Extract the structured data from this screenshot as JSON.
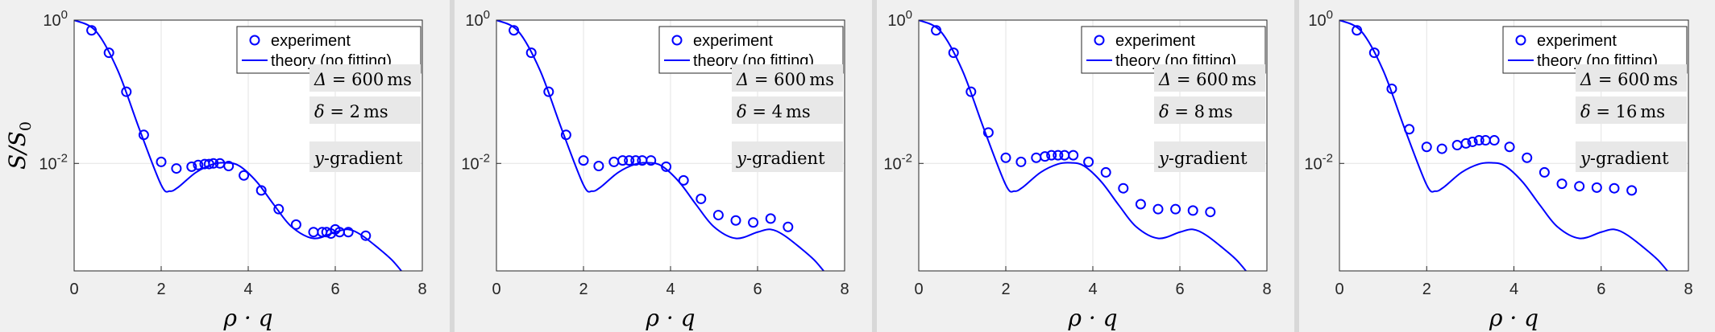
{
  "panels": [
    {
      "annotations": {
        "Delta": "600",
        "Delta_unit": "ms",
        "delta": "2",
        "delta_unit": "ms",
        "gradient": "y",
        "gradient_suffix": "-gradient"
      }
    },
    {
      "annotations": {
        "Delta": "600",
        "Delta_unit": "ms",
        "delta": "4",
        "delta_unit": "ms",
        "gradient": "y",
        "gradient_suffix": "-gradient"
      }
    },
    {
      "annotations": {
        "Delta": "600",
        "Delta_unit": "ms",
        "delta": "8",
        "delta_unit": "ms",
        "gradient": "y",
        "gradient_suffix": "-gradient"
      }
    },
    {
      "annotations": {
        "Delta": "600",
        "Delta_unit": "ms",
        "delta": "16",
        "delta_unit": "ms",
        "gradient": "y",
        "gradient_suffix": "-gradient"
      }
    }
  ],
  "colors": {
    "series": "#0000ff",
    "panel_bg": "#f0f0f0",
    "plot_bg": "#ffffff",
    "grid": "#e3e3e3",
    "annotation_bg": "#e8e8e8"
  },
  "chart_data": [
    {
      "type": "scatter+line",
      "xlabel": "ρ · q",
      "ylabel": "S/S0",
      "ylabel_main": "S",
      "ylabel_sub": "0",
      "xlim": [
        0,
        8
      ],
      "ylim_log10": [
        -3.5,
        0
      ],
      "yscale": "log",
      "xticks": [
        "0",
        "2",
        "4",
        "6",
        "8"
      ],
      "yticks": [
        {
          "base": "10",
          "exp": "0",
          "value": 1
        },
        {
          "base": "10",
          "exp": "-2",
          "value": 0.01
        }
      ],
      "legend": {
        "position": "top-right",
        "entries": [
          "experiment",
          "theory (no fitting)"
        ]
      },
      "series": [
        {
          "name": "experiment",
          "kind": "markers",
          "x": [
            0.4,
            0.8,
            1.2,
            1.6,
            2.0,
            2.35,
            2.7,
            2.85,
            3.0,
            3.1,
            3.2,
            3.35,
            3.55,
            3.9,
            4.3,
            4.7,
            5.1,
            5.5,
            5.7,
            5.8,
            5.9,
            6.0,
            6.1,
            6.3,
            6.7
          ],
          "y": [
            0.72,
            0.35,
            0.1,
            0.025,
            0.0105,
            0.0085,
            0.009,
            0.0095,
            0.0098,
            0.0098,
            0.01,
            0.01,
            0.0092,
            0.0068,
            0.0042,
            0.0023,
            0.0014,
            0.0011,
            0.0011,
            0.0011,
            0.00105,
            0.0012,
            0.0011,
            0.0011,
            0.00098
          ]
        },
        {
          "name": "theory (no fitting)",
          "kind": "line",
          "x": [
            0,
            0.5,
            1.0,
            1.5,
            2.0,
            2.2,
            2.4,
            2.8,
            3.2,
            3.5,
            3.8,
            4.2,
            4.6,
            5.0,
            5.5,
            6.0,
            6.3,
            6.6,
            7.0,
            7.3,
            7.55
          ],
          "y": [
            1.0,
            0.7,
            0.2,
            0.03,
            0.005,
            0.0041,
            0.0047,
            0.0075,
            0.0098,
            0.0102,
            0.0092,
            0.0055,
            0.0026,
            0.0013,
            0.0009,
            0.0011,
            0.0012,
            0.001,
            0.00065,
            0.00045,
            0.0003
          ]
        }
      ]
    },
    {
      "type": "scatter+line",
      "xlabel": "ρ · q",
      "ylabel": "",
      "xlim": [
        0,
        8
      ],
      "ylim_log10": [
        -3.5,
        0
      ],
      "yscale": "log",
      "xticks": [
        "0",
        "2",
        "4",
        "6",
        "8"
      ],
      "yticks": [
        {
          "base": "10",
          "exp": "0",
          "value": 1
        },
        {
          "base": "10",
          "exp": "-2",
          "value": 0.01
        }
      ],
      "legend": {
        "position": "top-right",
        "entries": [
          "experiment",
          "theory (no fitting)"
        ]
      },
      "series": [
        {
          "name": "experiment",
          "kind": "markers",
          "x": [
            0.4,
            0.8,
            1.2,
            1.6,
            2.0,
            2.35,
            2.7,
            2.9,
            3.05,
            3.2,
            3.35,
            3.55,
            3.9,
            4.3,
            4.7,
            5.1,
            5.5,
            5.9,
            6.3,
            6.7
          ],
          "y": [
            0.72,
            0.35,
            0.1,
            0.025,
            0.011,
            0.0092,
            0.0105,
            0.011,
            0.011,
            0.011,
            0.011,
            0.011,
            0.009,
            0.0058,
            0.0032,
            0.0019,
            0.0016,
            0.0015,
            0.0017,
            0.0013
          ]
        },
        {
          "name": "theory (no fitting)",
          "kind": "line",
          "x": [
            0,
            0.5,
            1.0,
            1.5,
            2.0,
            2.2,
            2.4,
            2.8,
            3.2,
            3.5,
            3.8,
            4.2,
            4.6,
            5.0,
            5.5,
            6.0,
            6.3,
            6.6,
            7.0,
            7.3,
            7.55
          ],
          "y": [
            1.0,
            0.7,
            0.2,
            0.03,
            0.005,
            0.0041,
            0.0047,
            0.0075,
            0.0098,
            0.0102,
            0.0092,
            0.0055,
            0.0026,
            0.0013,
            0.0009,
            0.0011,
            0.0012,
            0.001,
            0.00065,
            0.00045,
            0.0003
          ]
        }
      ]
    },
    {
      "type": "scatter+line",
      "xlabel": "ρ · q",
      "ylabel": "",
      "xlim": [
        0,
        8
      ],
      "ylim_log10": [
        -3.5,
        0
      ],
      "yscale": "log",
      "xticks": [
        "0",
        "2",
        "4",
        "6",
        "8"
      ],
      "yticks": [
        {
          "base": "10",
          "exp": "0",
          "value": 1
        },
        {
          "base": "10",
          "exp": "-2",
          "value": 0.01
        }
      ],
      "legend": {
        "position": "top-right",
        "entries": [
          "experiment",
          "theory (no fitting)"
        ]
      },
      "series": [
        {
          "name": "experiment",
          "kind": "markers",
          "x": [
            0.4,
            0.8,
            1.2,
            1.6,
            2.0,
            2.35,
            2.7,
            2.9,
            3.05,
            3.2,
            3.35,
            3.55,
            3.9,
            4.3,
            4.7,
            5.1,
            5.5,
            5.9,
            6.3,
            6.7
          ],
          "y": [
            0.72,
            0.35,
            0.1,
            0.027,
            0.012,
            0.0105,
            0.012,
            0.0125,
            0.013,
            0.013,
            0.013,
            0.013,
            0.0105,
            0.0075,
            0.0045,
            0.0027,
            0.0023,
            0.0023,
            0.0022,
            0.0021
          ]
        },
        {
          "name": "theory (no fitting)",
          "kind": "line",
          "x": [
            0,
            0.5,
            1.0,
            1.5,
            2.0,
            2.2,
            2.4,
            2.8,
            3.2,
            3.5,
            3.8,
            4.2,
            4.6,
            5.0,
            5.5,
            6.0,
            6.3,
            6.6,
            7.0,
            7.3,
            7.55
          ],
          "y": [
            1.0,
            0.7,
            0.2,
            0.03,
            0.005,
            0.0041,
            0.0047,
            0.0075,
            0.0098,
            0.0102,
            0.0092,
            0.0055,
            0.0026,
            0.0013,
            0.0009,
            0.0011,
            0.0012,
            0.001,
            0.00065,
            0.00045,
            0.0003
          ]
        }
      ]
    },
    {
      "type": "scatter+line",
      "xlabel": "ρ · q",
      "ylabel": "",
      "xlim": [
        0,
        8
      ],
      "ylim_log10": [
        -3.5,
        0
      ],
      "yscale": "log",
      "xticks": [
        "0",
        "2",
        "4",
        "6",
        "8"
      ],
      "yticks": [
        {
          "base": "10",
          "exp": "0",
          "value": 1
        },
        {
          "base": "10",
          "exp": "-2",
          "value": 0.01
        }
      ],
      "legend": {
        "position": "top-right",
        "entries": [
          "experiment",
          "theory (no fitting)"
        ]
      },
      "series": [
        {
          "name": "experiment",
          "kind": "markers",
          "x": [
            0.4,
            0.8,
            1.2,
            1.6,
            2.0,
            2.35,
            2.7,
            2.9,
            3.05,
            3.2,
            3.35,
            3.55,
            3.9,
            4.3,
            4.7,
            5.1,
            5.5,
            5.9,
            6.3,
            6.7
          ],
          "y": [
            0.72,
            0.35,
            0.11,
            0.03,
            0.017,
            0.016,
            0.018,
            0.019,
            0.02,
            0.021,
            0.021,
            0.021,
            0.017,
            0.012,
            0.0075,
            0.0052,
            0.0048,
            0.0046,
            0.0045,
            0.0042
          ]
        },
        {
          "name": "theory (no fitting)",
          "kind": "line",
          "x": [
            0,
            0.5,
            1.0,
            1.5,
            2.0,
            2.2,
            2.4,
            2.8,
            3.2,
            3.5,
            3.8,
            4.2,
            4.6,
            5.0,
            5.5,
            6.0,
            6.3,
            6.6,
            7.0,
            7.3,
            7.55
          ],
          "y": [
            1.0,
            0.7,
            0.2,
            0.03,
            0.005,
            0.0041,
            0.0047,
            0.0075,
            0.0098,
            0.0102,
            0.0092,
            0.0055,
            0.0026,
            0.0013,
            0.0009,
            0.0011,
            0.0012,
            0.001,
            0.00065,
            0.00045,
            0.0003
          ]
        }
      ]
    }
  ]
}
